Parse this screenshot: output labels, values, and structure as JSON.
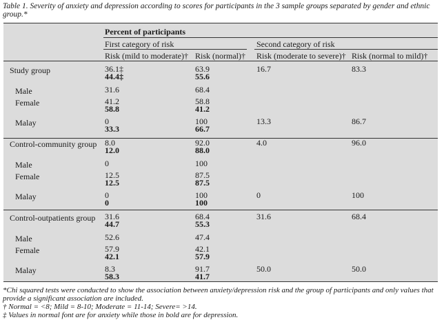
{
  "caption": "Table 1. Severity of anxiety and depression according to scores for participants in the 3 sample groups separated by gender and ethnic group.*",
  "header": {
    "percent": "Percent of participants",
    "first_category": "First category of risk",
    "second_category": "Second category of risk",
    "col1": "Risk (mild to moderate)†",
    "col2": "Risk (normal)†",
    "col3": "Risk (moderate to severe)†",
    "col4": "Risk (normal to mild)†"
  },
  "rows": [
    {
      "label": "Study group",
      "c1a": "36.1‡",
      "c1b": "44.4‡",
      "c2a": "63.9",
      "c2b": "55.6",
      "c3": "16.7",
      "c4": "83.3"
    },
    {
      "label": "Male",
      "c1a": "31.6",
      "c1b": "",
      "c2a": "68.4",
      "c2b": "",
      "c3": "",
      "c4": ""
    },
    {
      "label": "Female",
      "c1a": "41.2",
      "c1b": "58.8",
      "c2a": "58.8",
      "c2b": "41.2",
      "c3": "",
      "c4": ""
    },
    {
      "label": "Malay",
      "c1a": "0",
      "c1b": "33.3",
      "c2a": "100",
      "c2b": "66.7",
      "c3": "13.3",
      "c4": "86.7"
    },
    {
      "label": "Control-community group",
      "c1a": "8.0",
      "c1b": "12.0",
      "c2a": "92.0",
      "c2b": "88.0",
      "c3": "4.0",
      "c4": "96.0"
    },
    {
      "label": "Male",
      "c1a": "0",
      "c1b": "",
      "c2a": "100",
      "c2b": "",
      "c3": "",
      "c4": ""
    },
    {
      "label": "Female",
      "c1a": "12.5",
      "c1b": "12.5",
      "c2a": "87.5",
      "c2b": "87.5",
      "c3": "",
      "c4": ""
    },
    {
      "label": "Malay",
      "c1a": "0",
      "c1b": "0",
      "c2a": "100",
      "c2b": "100",
      "c3": "0",
      "c4": "100"
    },
    {
      "label": "Control-outpatients group",
      "c1a": "31.6",
      "c1b": "44.7",
      "c2a": "68.4",
      "c2b": "55.3",
      "c3": "31.6",
      "c4": "68.4"
    },
    {
      "label": "Male",
      "c1a": "52.6",
      "c1b": "",
      "c2a": "47.4",
      "c2b": "",
      "c3": "",
      "c4": ""
    },
    {
      "label": "Female",
      "c1a": "57.9",
      "c1b": "42.1",
      "c2a": "42.1",
      "c2b": "57.9",
      "c3": "",
      "c4": ""
    },
    {
      "label": "Malay",
      "c1a": "8.3",
      "c1b": "58.3",
      "c2a": "91.7",
      "c2b": "41.7",
      "c3": "50.0",
      "c4": "50.0"
    }
  ],
  "notes": {
    "n1": "*Chi squared tests were conducted to show the association between anxiety/depression risk and the group of participants and only values that provide a significant association are included.",
    "n2": "† Normal = <8; Mild = 8-10; Moderate = 11-14; Severe= >14.",
    "n3": "‡ Values in normal font are for anxiety while those in bold are for depression."
  }
}
